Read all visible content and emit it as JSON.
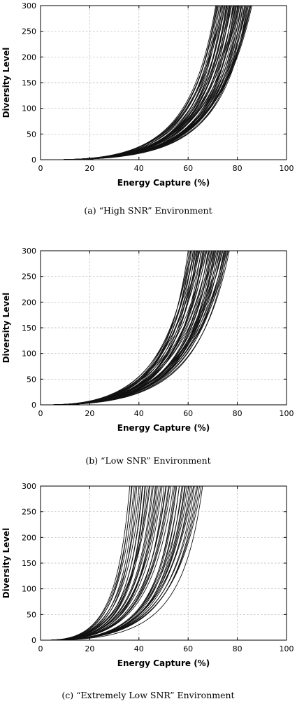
{
  "chart_data": [
    {
      "type": "line",
      "caption": "(a) “High SNR” Environment",
      "xlabel": "Energy Capture (%)",
      "ylabel": "Diversity Level",
      "xlim": [
        0,
        100
      ],
      "ylim": [
        0,
        300
      ],
      "xticks": [
        0,
        20,
        40,
        60,
        80,
        100
      ],
      "yticks": [
        0,
        50,
        100,
        150,
        200,
        250,
        300
      ],
      "grid": true,
      "legend": "none",
      "curve_family": {
        "count": 50,
        "start_x": 5,
        "x_at_ymax_min": 71,
        "x_at_ymax_max": 86,
        "shape_min": 1.2,
        "shape_max": 2.0
      }
    },
    {
      "type": "line",
      "caption": "(b) “Low SNR” Environment",
      "xlabel": "Energy Capture (%)",
      "ylabel": "Diversity Level",
      "xlim": [
        0,
        100
      ],
      "ylim": [
        0,
        300
      ],
      "xticks": [
        0,
        20,
        40,
        60,
        80,
        100
      ],
      "yticks": [
        0,
        50,
        100,
        150,
        200,
        250,
        300
      ],
      "grid": true,
      "legend": "none",
      "curve_family": {
        "count": 50,
        "start_x": 2,
        "x_at_ymax_min": 60,
        "x_at_ymax_max": 77,
        "shape_min": 0.8,
        "shape_max": 1.6
      }
    },
    {
      "type": "line",
      "caption": "(c) “Extremely Low SNR” Environment",
      "xlabel": "Energy Capture (%)",
      "ylabel": "Diversity Level",
      "xlim": [
        0,
        100
      ],
      "ylim": [
        0,
        300
      ],
      "xticks": [
        0,
        20,
        40,
        60,
        80,
        100
      ],
      "yticks": [
        0,
        50,
        100,
        150,
        200,
        250,
        300
      ],
      "grid": true,
      "legend": "none",
      "curve_family": {
        "count": 50,
        "start_x": 2,
        "x_at_ymax_min": 36,
        "x_at_ymax_max": 66,
        "shape_min": 1.0,
        "shape_max": 1.8
      }
    }
  ]
}
